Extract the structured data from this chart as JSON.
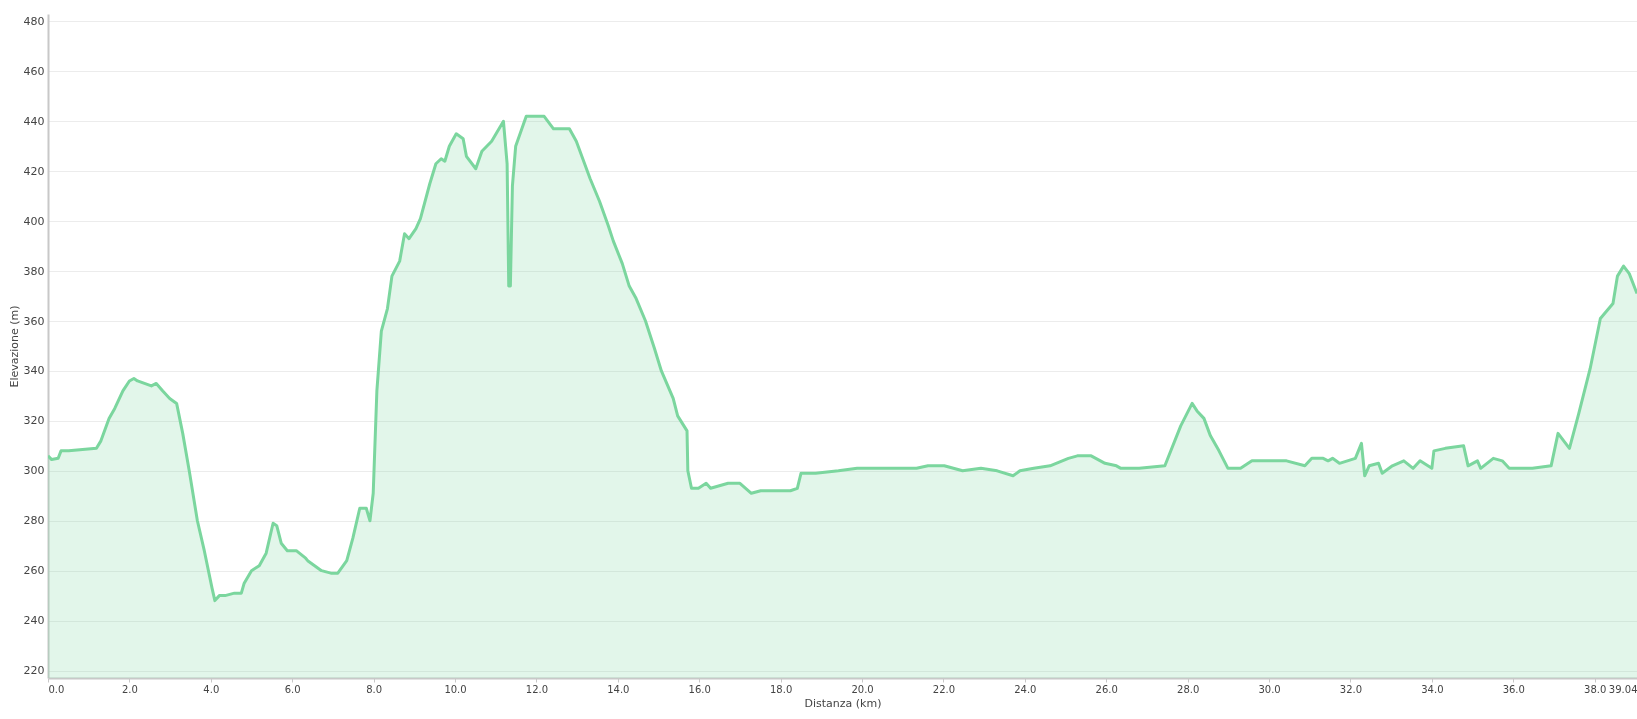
{
  "chart_data": {
    "type": "area",
    "xlabel": "Distanza   (km)",
    "ylabel": "Elevazione (m)",
    "xlim": [
      0,
      39.04
    ],
    "ylim": [
      217,
      483
    ],
    "xticks": [
      {
        "value": 0,
        "label": "0.0"
      },
      {
        "value": 2,
        "label": "2.0"
      },
      {
        "value": 4,
        "label": "4.0"
      },
      {
        "value": 6,
        "label": "6.0"
      },
      {
        "value": 8,
        "label": "8.0"
      },
      {
        "value": 10,
        "label": "10.0"
      },
      {
        "value": 12,
        "label": "12.0"
      },
      {
        "value": 14,
        "label": "14.0"
      },
      {
        "value": 16,
        "label": "16.0"
      },
      {
        "value": 18,
        "label": "18.0"
      },
      {
        "value": 20,
        "label": "20.0"
      },
      {
        "value": 22,
        "label": "22.0"
      },
      {
        "value": 24,
        "label": "24.0"
      },
      {
        "value": 26,
        "label": "26.0"
      },
      {
        "value": 28,
        "label": "28.0"
      },
      {
        "value": 30,
        "label": "30.0"
      },
      {
        "value": 32,
        "label": "32.0"
      },
      {
        "value": 34,
        "label": "34.0"
      },
      {
        "value": 36,
        "label": "36.0"
      },
      {
        "value": 38,
        "label": "38.0"
      },
      39.04
    ],
    "yticks": [
      220,
      240,
      260,
      280,
      300,
      320,
      340,
      360,
      380,
      400,
      420,
      440,
      460,
      480
    ],
    "grid": "y",
    "series": [
      {
        "color": "#7bd69e",
        "x": [
          0,
          0.09,
          0.25,
          0.32,
          0.51,
          1.19,
          1.3,
          1.5,
          1.64,
          1.84,
          2.0,
          2.11,
          2.2,
          2.54,
          2.66,
          2.82,
          2.99,
          3.16,
          3.31,
          3.47,
          3.67,
          3.84,
          4.03,
          4.1,
          4.21,
          4.35,
          4.58,
          4.75,
          4.82,
          5.0,
          5.19,
          5.36,
          5.53,
          5.62,
          5.73,
          5.88,
          6.1,
          6.33,
          6.38,
          6.72,
          6.95,
          7.12,
          7.34,
          7.49,
          7.66,
          7.82,
          7.91,
          7.99,
          8.08,
          8.19,
          8.34,
          8.45,
          8.64,
          8.76,
          8.87,
          9.04,
          9.15,
          9.38,
          9.53,
          9.66,
          9.75,
          9.86,
          10.03,
          10.2,
          10.28,
          10.51,
          10.66,
          10.9,
          11.19,
          11.28,
          11.32,
          11.36,
          11.41,
          11.49,
          11.75,
          12.19,
          12.42,
          12.81,
          12.98,
          13.32,
          13.55,
          13.77,
          13.89,
          14.11,
          14.28,
          14.45,
          14.68,
          14.9,
          15.07,
          15.36,
          15.47,
          15.7,
          15.72,
          15.81,
          15.98,
          16.17,
          16.28,
          16.71,
          17.0,
          17.28,
          17.51,
          17.9,
          18.24,
          18.41,
          18.5,
          18.86,
          19.42,
          19.88,
          20.16,
          20.55,
          20.95,
          21.34,
          21.62,
          22.02,
          22.47,
          22.92,
          23.32,
          23.71,
          23.88,
          24.22,
          24.62,
          25.07,
          25.29,
          25.63,
          25.97,
          26.25,
          26.36,
          26.81,
          27.44,
          27.83,
          28.11,
          28.23,
          28.4,
          28.56,
          28.77,
          28.99,
          29.3,
          29.58,
          30.43,
          30.88,
          31.05,
          31.33,
          31.45,
          31.56,
          31.73,
          32.12,
          32.27,
          32.35,
          32.46,
          32.69,
          32.78,
          33.03,
          33.31,
          33.54,
          33.71,
          34.0,
          34.05,
          34.33,
          34.78,
          34.89,
          35.12,
          35.2,
          35.51,
          35.73,
          35.9,
          36.47,
          36.93,
          37.1,
          37.38,
          37.61,
          37.89,
          38.14,
          38.45,
          38.56,
          38.71,
          38.85,
          39.04
        ],
        "values": [
          306,
          304.5,
          305,
          308,
          308,
          309,
          312,
          321,
          325,
          332,
          336,
          337,
          336,
          334,
          335,
          332,
          329,
          327,
          315,
          300,
          280,
          268,
          253,
          248,
          250,
          250,
          251,
          251,
          255,
          260,
          262,
          267,
          279,
          278,
          271,
          268,
          268,
          265,
          264,
          260,
          259,
          259,
          264,
          273,
          285,
          285,
          280,
          291,
          332,
          356,
          365,
          378,
          384,
          395,
          393,
          397,
          401,
          415,
          423,
          425,
          424,
          430,
          435,
          433,
          426,
          421,
          428,
          432,
          440,
          423,
          374,
          374,
          414,
          430,
          442,
          442,
          437,
          437,
          432,
          417,
          408,
          398,
          392,
          383,
          374,
          369,
          360,
          349,
          340,
          329,
          322,
          316,
          300,
          293,
          293,
          295,
          293,
          295,
          295,
          291,
          292,
          292,
          292,
          293,
          299,
          299,
          300,
          301,
          301,
          301,
          301,
          301,
          302,
          302,
          300,
          301,
          300,
          298,
          300,
          301,
          302,
          305,
          306,
          306,
          303,
          302,
          301,
          301,
          302,
          318,
          327,
          324,
          321,
          314,
          308,
          301,
          301,
          304,
          304,
          302,
          305,
          305,
          304,
          305,
          303,
          305,
          311,
          298,
          302,
          303,
          299,
          302,
          304,
          301,
          304,
          301,
          308,
          309,
          310,
          302,
          304,
          301,
          305,
          304,
          301,
          301,
          302,
          315,
          309,
          323,
          341,
          361,
          367,
          378,
          382,
          379,
          371
        ]
      }
    ]
  }
}
